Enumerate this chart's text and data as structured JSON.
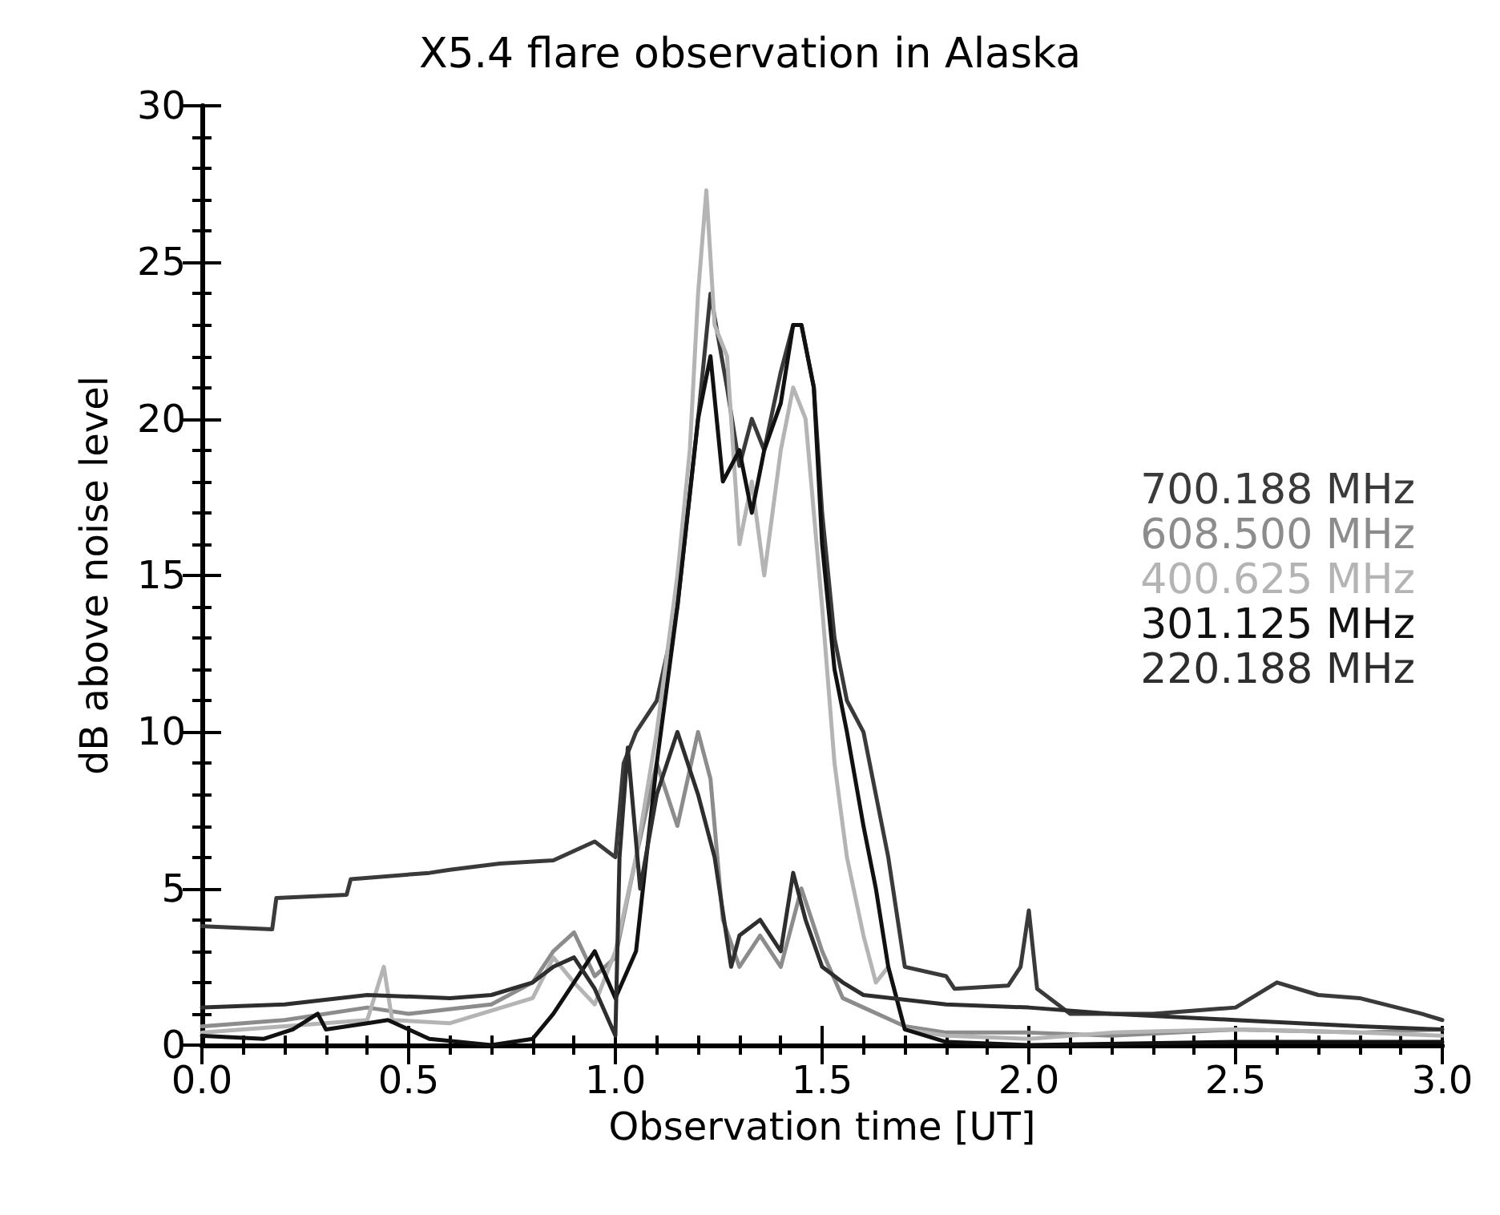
{
  "chart_data": {
    "type": "line",
    "title": "X5.4 flare observation in Alaska",
    "xlabel": "Observation time [UT]",
    "ylabel": "dB above noise level",
    "xlim": [
      0,
      3
    ],
    "xticks": [
      {
        "value": 0,
        "label": "0.0"
      },
      {
        "value": 0.5,
        "label": "0.5"
      },
      {
        "value": 1,
        "label": "1.0"
      },
      {
        "value": 1.5,
        "label": "1.5"
      },
      {
        "value": 2,
        "label": "2.0"
      },
      {
        "value": 2.5,
        "label": "2.5"
      },
      {
        "value": 3,
        "label": "3.0"
      }
    ],
    "ylim": [
      0,
      30
    ],
    "yticks": [
      0,
      5,
      10,
      15,
      20,
      25,
      30
    ],
    "grid": false,
    "legend": "right",
    "line_style": "solid",
    "marker": "none",
    "series": [
      {
        "name": "700.188 MHz",
        "color": "#3a3a3a",
        "x": [
          0,
          0.17,
          0.18,
          0.35,
          0.36,
          0.55,
          0.6,
          0.72,
          0.85,
          0.9,
          0.95,
          1.0,
          1.02,
          1.05,
          1.1,
          1.15,
          1.2,
          1.23,
          1.27,
          1.3,
          1.33,
          1.36,
          1.4,
          1.43,
          1.45,
          1.48,
          1.5,
          1.53,
          1.56,
          1.6,
          1.63,
          1.66,
          1.7,
          1.8,
          1.82,
          1.95,
          1.98,
          2.0,
          2.02,
          2.1,
          2.3,
          2.5,
          2.6,
          2.7,
          2.8,
          2.95,
          3.0
        ],
        "values": [
          3.8,
          3.7,
          4.7,
          4.8,
          5.3,
          5.5,
          5.6,
          5.8,
          5.9,
          6.2,
          6.5,
          6.0,
          9.0,
          10.0,
          11.0,
          14.0,
          20.0,
          24.0,
          21.0,
          18.5,
          20.0,
          19.0,
          21.5,
          23.0,
          23.0,
          21.0,
          17.0,
          13.0,
          11.0,
          10.0,
          8.0,
          6.0,
          2.5,
          2.2,
          1.8,
          1.9,
          2.5,
          4.3,
          1.8,
          1.0,
          1.0,
          1.2,
          2.0,
          1.6,
          1.5,
          1.0,
          0.8
        ]
      },
      {
        "name": "608.500 MHz",
        "color": "#8c8c8c",
        "x": [
          0,
          0.2,
          0.4,
          0.5,
          0.7,
          0.8,
          0.85,
          0.9,
          0.95,
          1.0,
          1.05,
          1.1,
          1.15,
          1.2,
          1.23,
          1.26,
          1.3,
          1.35,
          1.4,
          1.45,
          1.5,
          1.55,
          1.6,
          1.7,
          1.8,
          2.0,
          2.2,
          2.5,
          2.8,
          3.0
        ],
        "values": [
          0.6,
          0.8,
          1.2,
          1.0,
          1.3,
          2.0,
          3.0,
          3.6,
          2.2,
          2.8,
          6.0,
          9.0,
          7.0,
          10.0,
          8.5,
          4.0,
          2.5,
          3.5,
          2.5,
          5.0,
          3.0,
          1.5,
          1.2,
          0.6,
          0.4,
          0.4,
          0.3,
          0.5,
          0.4,
          0.5
        ]
      },
      {
        "name": "400.625 MHz",
        "color": "#b4b4b4",
        "x": [
          0,
          0.2,
          0.4,
          0.44,
          0.46,
          0.6,
          0.8,
          0.85,
          0.9,
          0.95,
          1.0,
          1.05,
          1.1,
          1.15,
          1.18,
          1.2,
          1.22,
          1.24,
          1.27,
          1.3,
          1.33,
          1.36,
          1.4,
          1.43,
          1.46,
          1.5,
          1.53,
          1.56,
          1.6,
          1.63,
          1.66,
          1.7,
          1.8,
          2.0,
          2.2,
          2.5,
          2.8,
          3.0
        ],
        "values": [
          0.4,
          0.6,
          0.8,
          2.5,
          0.8,
          0.7,
          1.5,
          2.8,
          2.0,
          1.3,
          3.0,
          6.0,
          10.0,
          15.0,
          19.0,
          24.0,
          27.3,
          23.0,
          22.0,
          16.0,
          18.0,
          15.0,
          19.0,
          21.0,
          20.0,
          14.0,
          9.0,
          6.0,
          3.5,
          2.0,
          2.5,
          0.5,
          0.3,
          0.2,
          0.4,
          0.5,
          0.4,
          0.3
        ]
      },
      {
        "name": "301.125 MHz",
        "color": "#111111",
        "x": [
          0,
          0.15,
          0.22,
          0.28,
          0.3,
          0.4,
          0.45,
          0.55,
          0.7,
          0.8,
          0.85,
          0.9,
          0.95,
          1.0,
          1.05,
          1.1,
          1.15,
          1.2,
          1.23,
          1.26,
          1.3,
          1.33,
          1.36,
          1.4,
          1.43,
          1.45,
          1.48,
          1.5,
          1.53,
          1.56,
          1.6,
          1.63,
          1.66,
          1.7,
          1.8,
          2.0,
          2.5,
          3.0
        ],
        "values": [
          0.3,
          0.2,
          0.5,
          1.0,
          0.5,
          0.7,
          0.8,
          0.2,
          0.0,
          0.2,
          1.0,
          2.0,
          3.0,
          1.5,
          3.0,
          9.0,
          14.0,
          20.0,
          22.0,
          18.0,
          19.0,
          17.0,
          19.0,
          20.5,
          23.0,
          23.0,
          21.0,
          16.0,
          12.0,
          10.0,
          7.0,
          5.0,
          2.5,
          0.5,
          0.1,
          0.0,
          0.1,
          0.1
        ]
      },
      {
        "name": "220.188 MHz",
        "color": "#2e2e2e",
        "x": [
          0,
          0.2,
          0.4,
          0.6,
          0.7,
          0.8,
          0.85,
          0.9,
          0.95,
          1.0,
          1.01,
          1.03,
          1.06,
          1.1,
          1.15,
          1.2,
          1.24,
          1.28,
          1.3,
          1.35,
          1.4,
          1.43,
          1.46,
          1.5,
          1.55,
          1.6,
          1.8,
          2.0,
          2.2,
          2.5,
          2.8,
          3.0
        ],
        "values": [
          1.2,
          1.3,
          1.6,
          1.5,
          1.6,
          2.0,
          2.5,
          2.8,
          1.8,
          0.3,
          6.0,
          9.5,
          5.0,
          8.0,
          10.0,
          8.0,
          6.0,
          2.5,
          3.5,
          4.0,
          3.0,
          5.5,
          4.0,
          2.5,
          2.0,
          1.6,
          1.3,
          1.2,
          1.0,
          0.8,
          0.6,
          0.5
        ]
      }
    ]
  }
}
